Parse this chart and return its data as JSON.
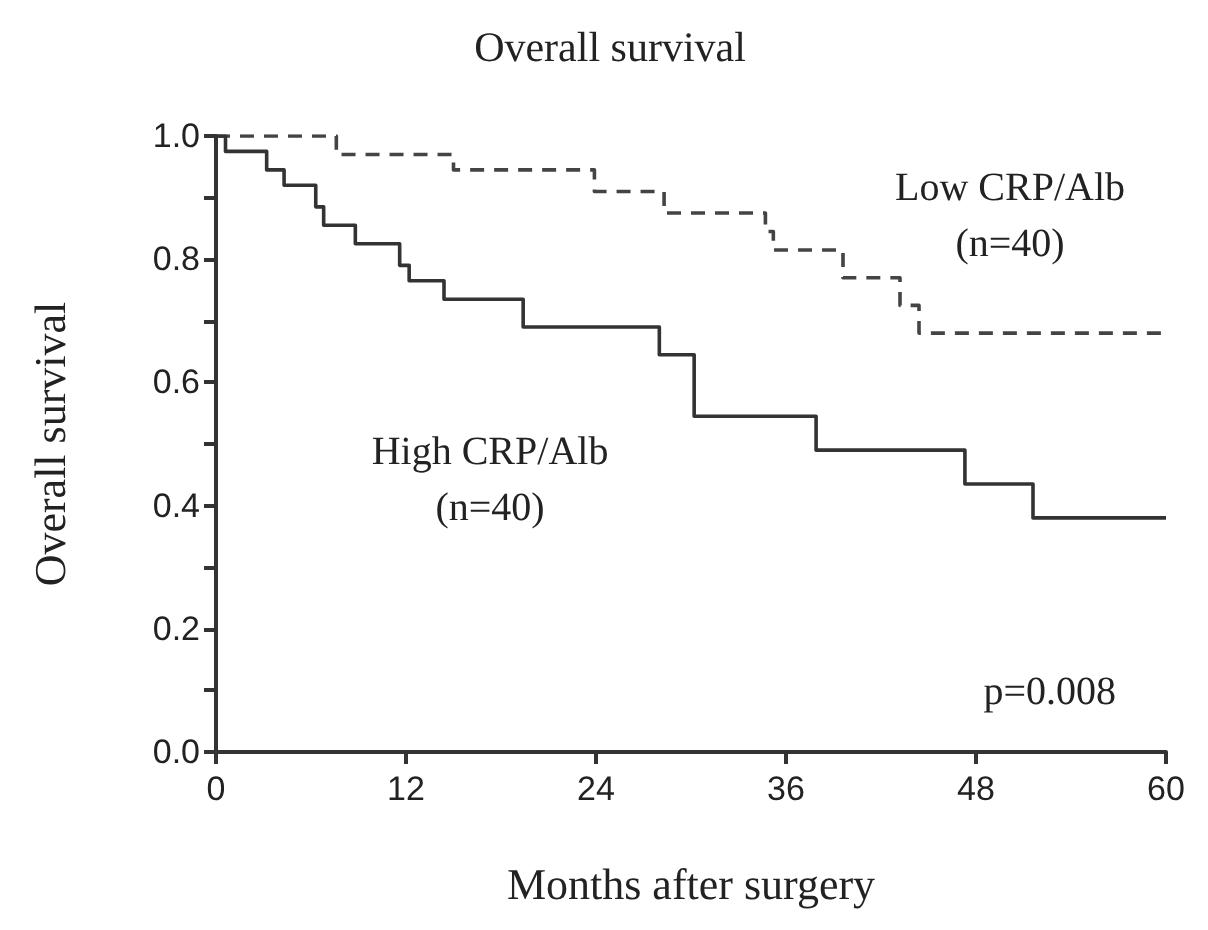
{
  "chart_data": {
    "type": "step",
    "title": "Overall survival",
    "xlabel": "Months after surgery",
    "ylabel": "Overall survival",
    "xlim": [
      0,
      60
    ],
    "xticks": [
      0,
      12,
      24,
      36,
      48,
      60
    ],
    "ylim": [
      0,
      1
    ],
    "yticks": [
      {
        "value": 0,
        "label": "0.0"
      },
      {
        "value": 0.1,
        "label": null
      },
      {
        "value": 0.2,
        "label": "0.2"
      },
      {
        "value": 0.3,
        "label": null
      },
      {
        "value": 0.4,
        "label": "0.4"
      },
      {
        "value": 0.5,
        "label": null
      },
      {
        "value": 0.6,
        "label": "0.6"
      },
      {
        "value": 0.7,
        "label": null
      },
      {
        "value": 0.8,
        "label": "0.8"
      },
      {
        "value": 0.9,
        "label": null
      },
      {
        "value": 1,
        "label": "1.0"
      }
    ],
    "grid": false,
    "legend": false,
    "marker": "none",
    "series": [
      {
        "name": "Low CRP/Alb\n(n=40)",
        "color": "#444444",
        "line_style": "dashed",
        "x": [
          0,
          7.6,
          15,
          23.9,
          28.3,
          34.7,
          35.2,
          39.6,
          43.2,
          44.4,
          60
        ],
        "values": [
          1,
          0.97,
          0.945,
          0.91,
          0.875,
          0.845,
          0.815,
          0.77,
          0.725,
          0.68,
          0.68
        ]
      },
      {
        "name": "High CRP/Alb\n(n=40)",
        "color": "#333333",
        "line_style": "solid",
        "x": [
          0,
          0.6,
          3.2,
          4.3,
          6.3,
          6.8,
          8.8,
          11.6,
          12.2,
          14.4,
          19.4,
          28,
          30.2,
          37.9,
          47.3,
          51.6,
          60
        ],
        "values": [
          1,
          0.975,
          0.945,
          0.92,
          0.885,
          0.855,
          0.825,
          0.79,
          0.765,
          0.735,
          0.69,
          0.645,
          0.545,
          0.49,
          0.435,
          0.38,
          0.38
        ]
      }
    ],
    "annotations": [
      "p=0.008"
    ]
  }
}
